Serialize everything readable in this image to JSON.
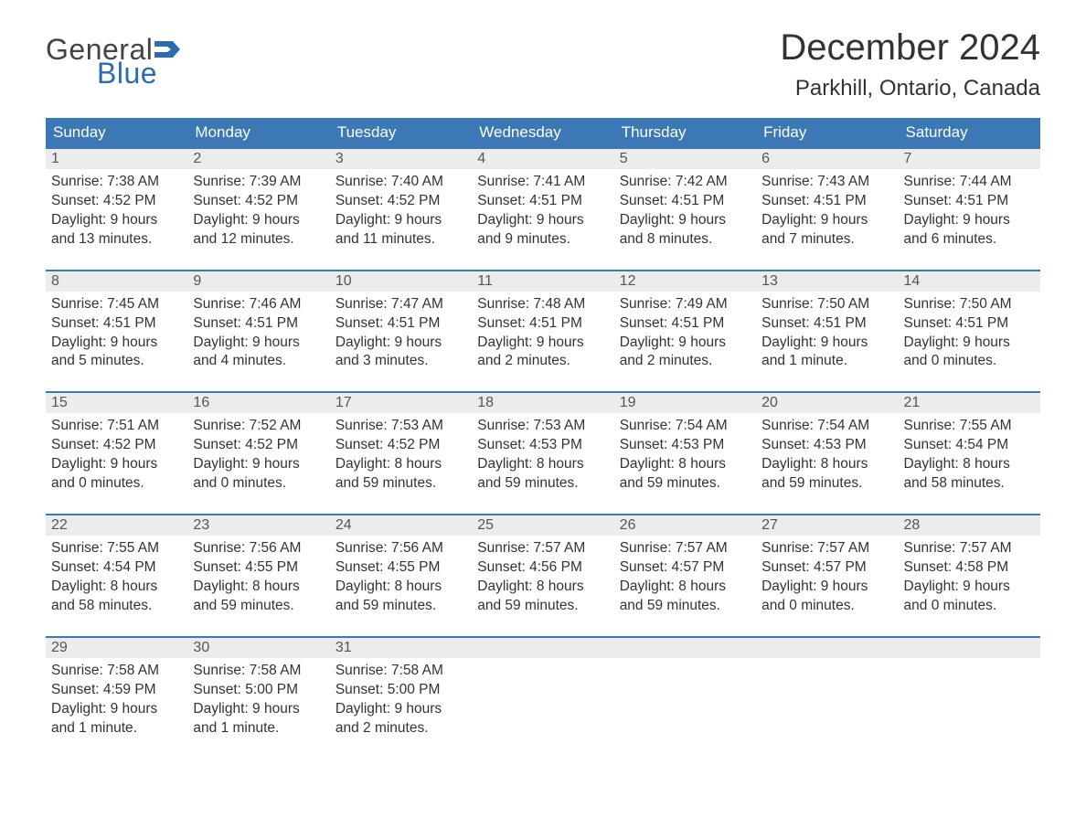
{
  "brand": {
    "word1": "General",
    "word2": "Blue",
    "flag_color": "#2b6cb0"
  },
  "title": "December 2024",
  "location": "Parkhill, Ontario, Canada",
  "colors": {
    "header_bg": "#3b78b5",
    "header_text": "#ffffff",
    "day_num_bg": "#ececec",
    "week_border": "#3b78b5",
    "text": "#333333"
  },
  "weekdays": [
    "Sunday",
    "Monday",
    "Tuesday",
    "Wednesday",
    "Thursday",
    "Friday",
    "Saturday"
  ],
  "weeks": [
    [
      {
        "n": "1",
        "sr": "Sunrise: 7:38 AM",
        "ss": "Sunset: 4:52 PM",
        "d1": "Daylight: 9 hours",
        "d2": "and 13 minutes."
      },
      {
        "n": "2",
        "sr": "Sunrise: 7:39 AM",
        "ss": "Sunset: 4:52 PM",
        "d1": "Daylight: 9 hours",
        "d2": "and 12 minutes."
      },
      {
        "n": "3",
        "sr": "Sunrise: 7:40 AM",
        "ss": "Sunset: 4:52 PM",
        "d1": "Daylight: 9 hours",
        "d2": "and 11 minutes."
      },
      {
        "n": "4",
        "sr": "Sunrise: 7:41 AM",
        "ss": "Sunset: 4:51 PM",
        "d1": "Daylight: 9 hours",
        "d2": "and 9 minutes."
      },
      {
        "n": "5",
        "sr": "Sunrise: 7:42 AM",
        "ss": "Sunset: 4:51 PM",
        "d1": "Daylight: 9 hours",
        "d2": "and 8 minutes."
      },
      {
        "n": "6",
        "sr": "Sunrise: 7:43 AM",
        "ss": "Sunset: 4:51 PM",
        "d1": "Daylight: 9 hours",
        "d2": "and 7 minutes."
      },
      {
        "n": "7",
        "sr": "Sunrise: 7:44 AM",
        "ss": "Sunset: 4:51 PM",
        "d1": "Daylight: 9 hours",
        "d2": "and 6 minutes."
      }
    ],
    [
      {
        "n": "8",
        "sr": "Sunrise: 7:45 AM",
        "ss": "Sunset: 4:51 PM",
        "d1": "Daylight: 9 hours",
        "d2": "and 5 minutes."
      },
      {
        "n": "9",
        "sr": "Sunrise: 7:46 AM",
        "ss": "Sunset: 4:51 PM",
        "d1": "Daylight: 9 hours",
        "d2": "and 4 minutes."
      },
      {
        "n": "10",
        "sr": "Sunrise: 7:47 AM",
        "ss": "Sunset: 4:51 PM",
        "d1": "Daylight: 9 hours",
        "d2": "and 3 minutes."
      },
      {
        "n": "11",
        "sr": "Sunrise: 7:48 AM",
        "ss": "Sunset: 4:51 PM",
        "d1": "Daylight: 9 hours",
        "d2": "and 2 minutes."
      },
      {
        "n": "12",
        "sr": "Sunrise: 7:49 AM",
        "ss": "Sunset: 4:51 PM",
        "d1": "Daylight: 9 hours",
        "d2": "and 2 minutes."
      },
      {
        "n": "13",
        "sr": "Sunrise: 7:50 AM",
        "ss": "Sunset: 4:51 PM",
        "d1": "Daylight: 9 hours",
        "d2": "and 1 minute."
      },
      {
        "n": "14",
        "sr": "Sunrise: 7:50 AM",
        "ss": "Sunset: 4:51 PM",
        "d1": "Daylight: 9 hours",
        "d2": "and 0 minutes."
      }
    ],
    [
      {
        "n": "15",
        "sr": "Sunrise: 7:51 AM",
        "ss": "Sunset: 4:52 PM",
        "d1": "Daylight: 9 hours",
        "d2": "and 0 minutes."
      },
      {
        "n": "16",
        "sr": "Sunrise: 7:52 AM",
        "ss": "Sunset: 4:52 PM",
        "d1": "Daylight: 9 hours",
        "d2": "and 0 minutes."
      },
      {
        "n": "17",
        "sr": "Sunrise: 7:53 AM",
        "ss": "Sunset: 4:52 PM",
        "d1": "Daylight: 8 hours",
        "d2": "and 59 minutes."
      },
      {
        "n": "18",
        "sr": "Sunrise: 7:53 AM",
        "ss": "Sunset: 4:53 PM",
        "d1": "Daylight: 8 hours",
        "d2": "and 59 minutes."
      },
      {
        "n": "19",
        "sr": "Sunrise: 7:54 AM",
        "ss": "Sunset: 4:53 PM",
        "d1": "Daylight: 8 hours",
        "d2": "and 59 minutes."
      },
      {
        "n": "20",
        "sr": "Sunrise: 7:54 AM",
        "ss": "Sunset: 4:53 PM",
        "d1": "Daylight: 8 hours",
        "d2": "and 59 minutes."
      },
      {
        "n": "21",
        "sr": "Sunrise: 7:55 AM",
        "ss": "Sunset: 4:54 PM",
        "d1": "Daylight: 8 hours",
        "d2": "and 58 minutes."
      }
    ],
    [
      {
        "n": "22",
        "sr": "Sunrise: 7:55 AM",
        "ss": "Sunset: 4:54 PM",
        "d1": "Daylight: 8 hours",
        "d2": "and 58 minutes."
      },
      {
        "n": "23",
        "sr": "Sunrise: 7:56 AM",
        "ss": "Sunset: 4:55 PM",
        "d1": "Daylight: 8 hours",
        "d2": "and 59 minutes."
      },
      {
        "n": "24",
        "sr": "Sunrise: 7:56 AM",
        "ss": "Sunset: 4:55 PM",
        "d1": "Daylight: 8 hours",
        "d2": "and 59 minutes."
      },
      {
        "n": "25",
        "sr": "Sunrise: 7:57 AM",
        "ss": "Sunset: 4:56 PM",
        "d1": "Daylight: 8 hours",
        "d2": "and 59 minutes."
      },
      {
        "n": "26",
        "sr": "Sunrise: 7:57 AM",
        "ss": "Sunset: 4:57 PM",
        "d1": "Daylight: 8 hours",
        "d2": "and 59 minutes."
      },
      {
        "n": "27",
        "sr": "Sunrise: 7:57 AM",
        "ss": "Sunset: 4:57 PM",
        "d1": "Daylight: 9 hours",
        "d2": "and 0 minutes."
      },
      {
        "n": "28",
        "sr": "Sunrise: 7:57 AM",
        "ss": "Sunset: 4:58 PM",
        "d1": "Daylight: 9 hours",
        "d2": "and 0 minutes."
      }
    ],
    [
      {
        "n": "29",
        "sr": "Sunrise: 7:58 AM",
        "ss": "Sunset: 4:59 PM",
        "d1": "Daylight: 9 hours",
        "d2": "and 1 minute."
      },
      {
        "n": "30",
        "sr": "Sunrise: 7:58 AM",
        "ss": "Sunset: 5:00 PM",
        "d1": "Daylight: 9 hours",
        "d2": "and 1 minute."
      },
      {
        "n": "31",
        "sr": "Sunrise: 7:58 AM",
        "ss": "Sunset: 5:00 PM",
        "d1": "Daylight: 9 hours",
        "d2": "and 2 minutes."
      },
      {
        "empty": true
      },
      {
        "empty": true
      },
      {
        "empty": true
      },
      {
        "empty": true
      }
    ]
  ]
}
